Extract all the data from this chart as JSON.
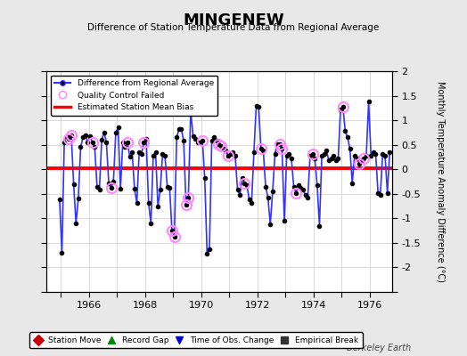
{
  "title": "MINGENEW",
  "subtitle": "Difference of Station Temperature Data from Regional Average",
  "ylabel": "Monthly Temperature Anomaly Difference (°C)",
  "xlabel_ticks": [
    1966,
    1968,
    1970,
    1972,
    1974,
    1976
  ],
  "ylim": [
    -2.5,
    2.0
  ],
  "yticks": [
    -2.5,
    -2.0,
    -1.5,
    -1.0,
    -0.5,
    0.0,
    0.5,
    1.0,
    1.5,
    2.0
  ],
  "xlim": [
    1964.5,
    1976.8
  ],
  "bias_level": 0.02,
  "background_color": "#e8e8e8",
  "plot_bg_color": "#ffffff",
  "line_color": "#3333ff",
  "bias_color": "#ff0000",
  "qc_color": "#ff88ff",
  "marker_color": "#000000",
  "watermark": "Berkeley Earth",
  "time_series": [
    1964.958,
    1965.042,
    1965.125,
    1965.208,
    1965.292,
    1965.375,
    1965.458,
    1965.542,
    1965.625,
    1965.708,
    1965.792,
    1965.875,
    1965.958,
    1966.042,
    1966.125,
    1966.208,
    1966.292,
    1966.375,
    1966.458,
    1966.542,
    1966.625,
    1966.708,
    1966.792,
    1966.875,
    1966.958,
    1967.042,
    1967.125,
    1967.208,
    1967.292,
    1967.375,
    1967.458,
    1967.542,
    1967.625,
    1967.708,
    1967.792,
    1967.875,
    1967.958,
    1968.042,
    1968.125,
    1968.208,
    1968.292,
    1968.375,
    1968.458,
    1968.542,
    1968.625,
    1968.708,
    1968.792,
    1968.875,
    1968.958,
    1969.042,
    1969.125,
    1969.208,
    1969.292,
    1969.375,
    1969.458,
    1969.542,
    1969.625,
    1969.708,
    1969.792,
    1969.875,
    1969.958,
    1970.042,
    1970.125,
    1970.208,
    1970.292,
    1970.375,
    1970.458,
    1970.542,
    1970.625,
    1970.708,
    1970.792,
    1970.875,
    1970.958,
    1971.042,
    1971.125,
    1971.208,
    1971.292,
    1971.375,
    1971.458,
    1971.542,
    1971.625,
    1971.708,
    1971.792,
    1971.875,
    1971.958,
    1972.042,
    1972.125,
    1972.208,
    1972.292,
    1972.375,
    1972.458,
    1972.542,
    1972.625,
    1972.708,
    1972.792,
    1972.875,
    1972.958,
    1973.042,
    1973.125,
    1973.208,
    1973.292,
    1973.375,
    1973.458,
    1973.542,
    1973.625,
    1973.708,
    1973.792,
    1973.875,
    1973.958,
    1974.042,
    1974.125,
    1974.208,
    1974.292,
    1974.375,
    1974.458,
    1974.542,
    1974.625,
    1974.708,
    1974.792,
    1974.875,
    1974.958,
    1975.042,
    1975.125,
    1975.208,
    1975.292,
    1975.375,
    1975.458,
    1975.542,
    1975.625,
    1975.708,
    1975.792,
    1975.875,
    1975.958,
    1976.042,
    1976.125,
    1976.208,
    1976.292,
    1976.375,
    1976.458,
    1976.542,
    1976.625,
    1976.708
  ],
  "values": [
    -0.62,
    -1.7,
    0.55,
    0.68,
    0.62,
    0.7,
    -0.3,
    -1.1,
    -0.6,
    0.45,
    0.65,
    0.7,
    0.55,
    0.68,
    0.55,
    0.45,
    -0.35,
    -0.42,
    0.6,
    0.75,
    0.55,
    -0.28,
    -0.38,
    -0.25,
    0.75,
    0.85,
    -0.4,
    0.55,
    0.45,
    0.55,
    0.25,
    0.35,
    -0.4,
    -0.68,
    0.35,
    0.32,
    0.55,
    0.62,
    -0.68,
    -1.1,
    0.28,
    0.35,
    -0.75,
    -0.42,
    0.32,
    0.28,
    -0.35,
    -0.38,
    -1.25,
    -1.38,
    0.65,
    0.82,
    0.82,
    0.58,
    -0.72,
    -0.58,
    1.2,
    0.68,
    0.62,
    0.55,
    0.55,
    0.58,
    -0.18,
    -1.72,
    -1.62,
    0.58,
    0.65,
    0.58,
    0.52,
    0.48,
    0.42,
    0.38,
    0.28,
    0.32,
    0.35,
    0.28,
    -0.42,
    -0.52,
    -0.18,
    -0.28,
    -0.32,
    -0.62,
    -0.68,
    0.35,
    1.3,
    1.28,
    0.42,
    0.38,
    -0.35,
    -0.58,
    -1.12,
    -0.45,
    0.32,
    0.52,
    0.52,
    0.42,
    -1.05,
    0.28,
    0.32,
    0.22,
    -0.35,
    -0.48,
    -0.32,
    -0.38,
    -0.42,
    -0.52,
    -0.58,
    0.28,
    0.32,
    0.22,
    -0.32,
    -1.15,
    0.28,
    0.32,
    0.38,
    0.18,
    0.22,
    0.28,
    0.18,
    0.22,
    1.22,
    1.28,
    0.78,
    0.65,
    0.42,
    -0.28,
    0.28,
    0.22,
    0.12,
    0.18,
    0.22,
    0.28,
    1.38,
    0.28,
    0.35,
    0.32,
    -0.48,
    -0.52,
    0.32,
    0.28,
    -0.48,
    0.35
  ],
  "qc_failed_indices": [
    4,
    5,
    14,
    22,
    29,
    36,
    48,
    49,
    54,
    55,
    61,
    68,
    69,
    72,
    79,
    86,
    94,
    95,
    101,
    108,
    121,
    128,
    130
  ],
  "legend_main_labels": [
    "Difference from Regional Average",
    "Quality Control Failed",
    "Estimated Station Mean Bias"
  ],
  "legend_bottom_labels": [
    "Station Move",
    "Record Gap",
    "Time of Obs. Change",
    "Empirical Break"
  ],
  "legend_bottom_colors": [
    "#cc0000",
    "#008800",
    "#0000cc",
    "#333333"
  ],
  "legend_bottom_markers": [
    "D",
    "^",
    "v",
    "s"
  ]
}
